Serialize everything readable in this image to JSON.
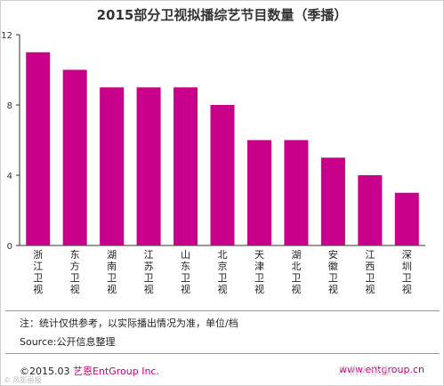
{
  "chart_data": {
    "type": "bar",
    "title": "2015部分卫视拟播综艺节目数量（季播）",
    "categories": [
      "浙江卫视",
      "东方卫视",
      "湖南卫视",
      "江苏卫视",
      "山东卫视",
      "北京卫视",
      "天津卫视",
      "湖北卫视",
      "安徽卫视",
      "江西卫视",
      "深圳卫视"
    ],
    "values": [
      11,
      10,
      9,
      9,
      9,
      8,
      6,
      6,
      5,
      4,
      3
    ],
    "ylim": [
      0,
      12
    ],
    "yticks": [
      0,
      4,
      8,
      12
    ],
    "grid": false,
    "bar_color": "#c8008a"
  },
  "note": "注：统计仅供参考，以实际播出情况为准，单位/档",
  "source": "Source:公开信息整理",
  "footer": {
    "copyright": "©2015.03  ",
    "brand": "艺恩EntGroup Inc.",
    "website": "www.entgroup.cn"
  },
  "watermark": {
    "left": "© 风影画报",
    "right": "广告人杂志"
  }
}
